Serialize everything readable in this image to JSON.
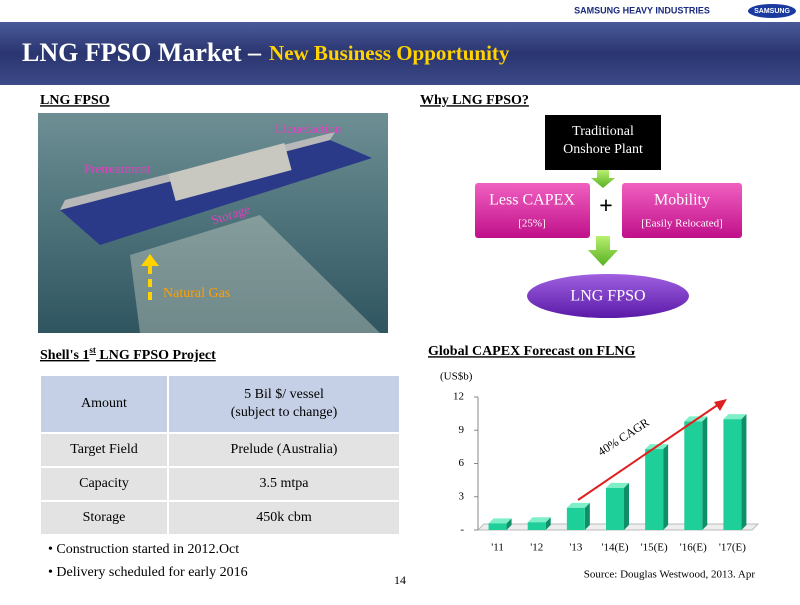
{
  "header": {
    "brand": "SAMSUNG HEAVY INDUSTRIES",
    "logo": "SAMSUNG",
    "title": "LNG FPSO Market –",
    "subtitle": "New Business Opportunity"
  },
  "left": {
    "heading": "LNG FPSO",
    "image_labels": [
      "Liquefaction",
      "Pretreatment",
      "Storage",
      "Natural Gas"
    ]
  },
  "diagram": {
    "heading": "Why LNG FPSO?",
    "top": [
      "Traditional",
      "Onshore Plant"
    ],
    "left_box": {
      "title": "Less CAPEX",
      "note": "[25%]"
    },
    "plus": "+",
    "right_box": {
      "title": "Mobility",
      "note": "[Easily Relocated]"
    },
    "result": "LNG FPSO"
  },
  "project": {
    "heading": [
      "Shell's 1",
      "st",
      " LNG FPSO Project"
    ],
    "table": {
      "rows": [
        [
          "Amount",
          [
            "5 Bil $/ vessel",
            "(subject to change)"
          ]
        ],
        [
          "Target Field",
          "Prelude (Australia)"
        ],
        [
          "Capacity",
          "3.5 mtpa"
        ],
        [
          "Storage",
          "450k cbm"
        ]
      ]
    },
    "bullets": [
      "Construction started in 2012.Oct",
      "Delivery scheduled for early 2016"
    ]
  },
  "page_number": "14",
  "chart_data": {
    "type": "bar",
    "title": "Global CAPEX Forecast on FLNG",
    "y_label": "(US$b)",
    "annotation": "40% CAGR",
    "source": "Source: Douglas Westwood, 2013. Apr",
    "categories": [
      "'11",
      "'12",
      "'13",
      "'14(E)",
      "'15(E)",
      "'16(E)",
      "'17(E)"
    ],
    "values": [
      0.6,
      0.7,
      2.0,
      3.8,
      7.3,
      9.8,
      10.0
    ],
    "color": "#1fcf9a",
    "ylim": [
      0,
      12
    ],
    "yticks": [
      {
        "value": 0,
        "label": "-"
      },
      3,
      6,
      9,
      12
    ]
  }
}
